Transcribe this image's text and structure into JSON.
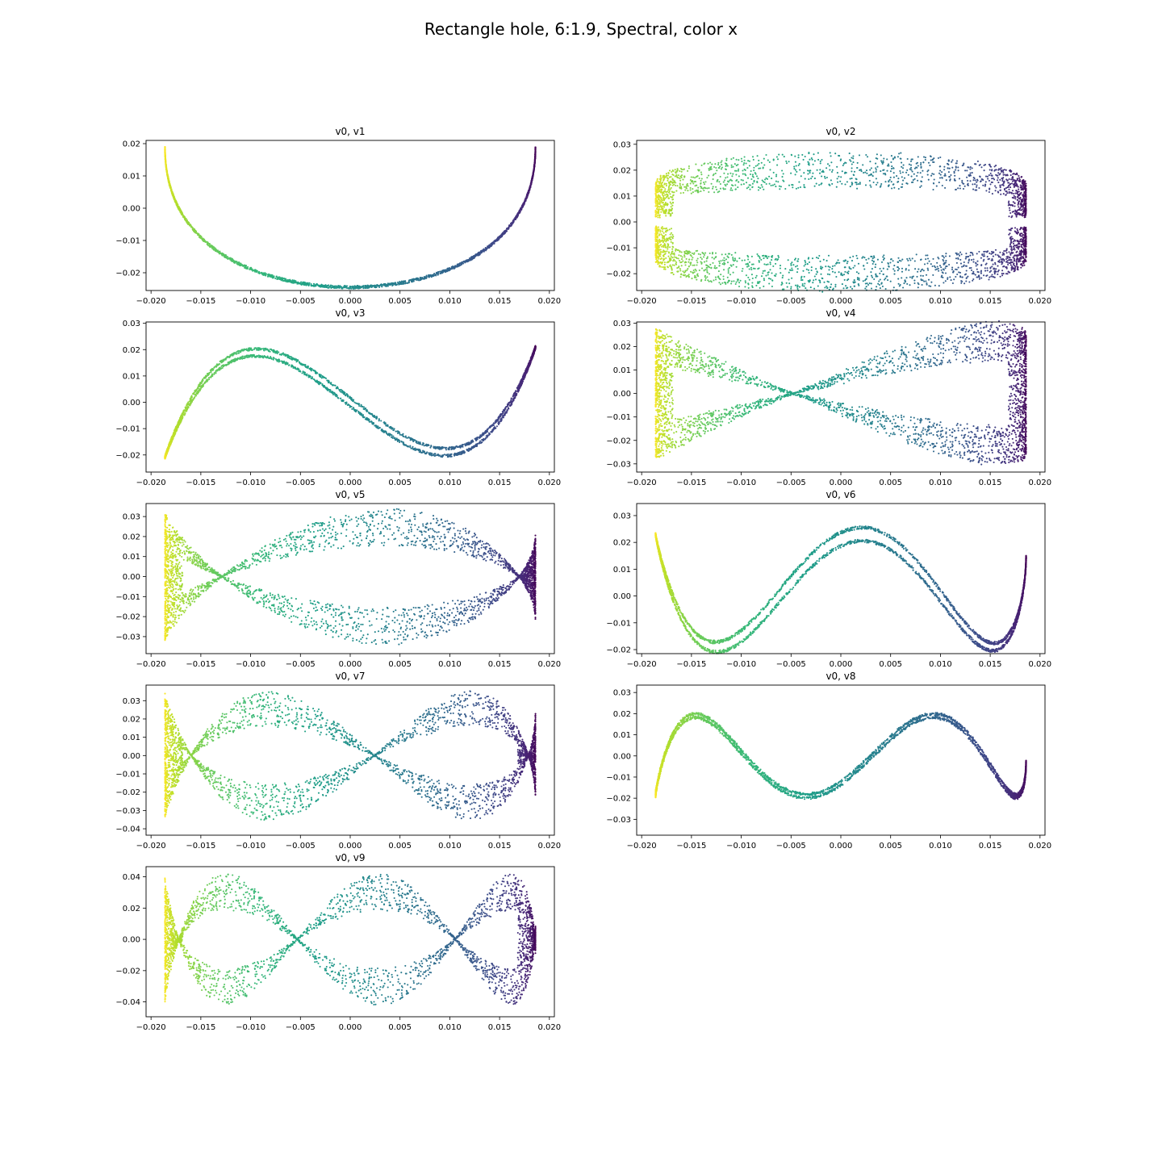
{
  "figure": {
    "title": "Rectangle hole, 6:1.9, Spectral, color x"
  },
  "chart_data": [
    {
      "type": "scatter",
      "title": "v0, v1",
      "xlim": [
        -0.0205,
        0.0205
      ],
      "ylim": [
        -0.0255,
        0.021
      ],
      "xticks": [
        -0.02,
        -0.015,
        -0.01,
        -0.005,
        0,
        0.005,
        0.01,
        0.015,
        0.02
      ],
      "xtick_labels": [
        "−0.020",
        "−0.015",
        "−0.010",
        "−0.005",
        "0.000",
        "0.005",
        "0.010",
        "0.015",
        "0.020"
      ],
      "yticks": [
        -0.02,
        -0.01,
        0,
        0.01,
        0.02
      ],
      "ytick_labels": [
        "−0.02",
        "−0.01",
        "0.00",
        "0.01",
        "0.02"
      ],
      "x_range": [
        -0.0186,
        0.0186
      ],
      "shape": "parabola",
      "pattern": "v1",
      "colormap": "viridis (reversed by x)"
    },
    {
      "type": "scatter",
      "title": "v0, v2",
      "xlim": [
        -0.0205,
        0.0205
      ],
      "ylim": [
        -0.0265,
        0.0315
      ],
      "xticks": [
        -0.02,
        -0.015,
        -0.01,
        -0.005,
        0,
        0.005,
        0.01,
        0.015,
        0.02
      ],
      "xtick_labels": [
        "−0.020",
        "−0.015",
        "−0.010",
        "−0.005",
        "0.000",
        "0.005",
        "0.010",
        "0.015",
        "0.020"
      ],
      "yticks": [
        -0.02,
        -0.01,
        0,
        0.01,
        0.02,
        0.03
      ],
      "ytick_labels": [
        "−0.02",
        "−0.01",
        "0.00",
        "0.01",
        "0.02",
        "0.03"
      ],
      "x_range": [
        -0.0186,
        0.0186
      ],
      "shape": "rectangle with hole",
      "pattern": "v2",
      "colormap": "viridis (reversed by x)"
    },
    {
      "type": "scatter",
      "title": "v0, v3",
      "xlim": [
        -0.0205,
        0.0205
      ],
      "ylim": [
        -0.0265,
        0.0305
      ],
      "xticks": [
        -0.02,
        -0.015,
        -0.01,
        -0.005,
        0,
        0.005,
        0.01,
        0.015,
        0.02
      ],
      "xtick_labels": [
        "−0.020",
        "−0.015",
        "−0.010",
        "−0.005",
        "0.000",
        "0.005",
        "0.010",
        "0.015",
        "0.020"
      ],
      "yticks": [
        -0.02,
        -0.01,
        0,
        0.01,
        0.02,
        0.03
      ],
      "ytick_labels": [
        "−0.02",
        "−0.01",
        "0.00",
        "0.01",
        "0.02",
        "0.03"
      ],
      "x_range": [
        -0.0186,
        0.0186
      ],
      "shape": "cubic",
      "pattern": "v3",
      "colormap": "viridis (reversed by x)"
    },
    {
      "type": "scatter",
      "title": "v0, v4",
      "xlim": [
        -0.0205,
        0.0205
      ],
      "ylim": [
        -0.0335,
        0.0305
      ],
      "xticks": [
        -0.02,
        -0.015,
        -0.01,
        -0.005,
        0,
        0.005,
        0.01,
        0.015,
        0.02
      ],
      "xtick_labels": [
        "−0.020",
        "−0.015",
        "−0.010",
        "−0.005",
        "0.000",
        "0.005",
        "0.010",
        "0.015",
        "0.020"
      ],
      "yticks": [
        -0.03,
        -0.02,
        -0.01,
        0,
        0.01,
        0.02,
        0.03
      ],
      "ytick_labels": [
        "−0.03",
        "−0.02",
        "−0.01",
        "0.00",
        "0.01",
        "0.02",
        "0.03"
      ],
      "x_range": [
        -0.0186,
        0.0186
      ],
      "shape": "bow-tie",
      "pattern": "v4",
      "colormap": "viridis (reversed by x)"
    },
    {
      "type": "scatter",
      "title": "v0, v5",
      "xlim": [
        -0.0205,
        0.0205
      ],
      "ylim": [
        -0.0385,
        0.0365
      ],
      "xticks": [
        -0.02,
        -0.015,
        -0.01,
        -0.005,
        0,
        0.005,
        0.01,
        0.015,
        0.02
      ],
      "xtick_labels": [
        "−0.020",
        "−0.015",
        "−0.010",
        "−0.005",
        "0.000",
        "0.005",
        "0.010",
        "0.015",
        "0.020"
      ],
      "yticks": [
        -0.03,
        -0.02,
        -0.01,
        0,
        0.01,
        0.02,
        0.03
      ],
      "ytick_labels": [
        "−0.03",
        "−0.02",
        "−0.01",
        "0.00",
        "0.01",
        "0.02",
        "0.03"
      ],
      "x_range": [
        -0.0186,
        0.0186
      ],
      "shape": "double crossing",
      "pattern": "v5",
      "colormap": "viridis (reversed by x)"
    },
    {
      "type": "scatter",
      "title": "v0, v6",
      "xlim": [
        -0.0205,
        0.0205
      ],
      "ylim": [
        -0.0215,
        0.0345
      ],
      "xticks": [
        -0.02,
        -0.015,
        -0.01,
        -0.005,
        0,
        0.005,
        0.01,
        0.015,
        0.02
      ],
      "xtick_labels": [
        "−0.020",
        "−0.015",
        "−0.010",
        "−0.005",
        "0.000",
        "0.005",
        "0.010",
        "0.015",
        "0.020"
      ],
      "yticks": [
        -0.02,
        -0.01,
        0,
        0.01,
        0.02,
        0.03
      ],
      "ytick_labels": [
        "−0.02",
        "−0.01",
        "0.00",
        "0.01",
        "0.02",
        "0.03"
      ],
      "x_range": [
        -0.0186,
        0.0186
      ],
      "shape": "W curve",
      "pattern": "v6",
      "colormap": "viridis (reversed by x)"
    },
    {
      "type": "scatter",
      "title": "v0, v7",
      "xlim": [
        -0.0205,
        0.0205
      ],
      "ylim": [
        -0.0435,
        0.0385
      ],
      "xticks": [
        -0.02,
        -0.015,
        -0.01,
        -0.005,
        0,
        0.005,
        0.01,
        0.015,
        0.02
      ],
      "xtick_labels": [
        "−0.020",
        "−0.015",
        "−0.010",
        "−0.005",
        "0.000",
        "0.005",
        "0.010",
        "0.015",
        "0.020"
      ],
      "yticks": [
        -0.04,
        -0.03,
        -0.02,
        -0.01,
        0,
        0.01,
        0.02,
        0.03
      ],
      "ytick_labels": [
        "−0.04",
        "−0.03",
        "−0.02",
        "−0.01",
        "0.00",
        "0.01",
        "0.02",
        "0.03"
      ],
      "x_range": [
        -0.0186,
        0.0186
      ],
      "shape": "triple crossing",
      "pattern": "v7",
      "colormap": "viridis (reversed by x)"
    },
    {
      "type": "scatter",
      "title": "v0, v8",
      "xlim": [
        -0.0205,
        0.0205
      ],
      "ylim": [
        -0.0375,
        0.0335
      ],
      "xticks": [
        -0.02,
        -0.015,
        -0.01,
        -0.005,
        0,
        0.005,
        0.01,
        0.015,
        0.02
      ],
      "xtick_labels": [
        "−0.020",
        "−0.015",
        "−0.010",
        "−0.005",
        "0.000",
        "0.005",
        "0.010",
        "0.015",
        "0.020"
      ],
      "yticks": [
        -0.03,
        -0.02,
        -0.01,
        0,
        0.01,
        0.02,
        0.03
      ],
      "ytick_labels": [
        "−0.03",
        "−0.02",
        "−0.01",
        "0.00",
        "0.01",
        "0.02",
        "0.03"
      ],
      "x_range": [
        -0.0186,
        0.0186
      ],
      "shape": "wave",
      "pattern": "v8",
      "colormap": "viridis (reversed by x)"
    },
    {
      "type": "scatter",
      "title": "v0, v9",
      "xlim": [
        -0.0205,
        0.0205
      ],
      "ylim": [
        -0.0495,
        0.0465
      ],
      "xticks": [
        -0.02,
        -0.015,
        -0.01,
        -0.005,
        0,
        0.005,
        0.01,
        0.015,
        0.02
      ],
      "xtick_labels": [
        "−0.020",
        "−0.015",
        "−0.010",
        "−0.005",
        "0.000",
        "0.005",
        "0.010",
        "0.015",
        "0.020"
      ],
      "yticks": [
        -0.04,
        -0.02,
        0,
        0.02,
        0.04
      ],
      "ytick_labels": [
        "−0.04",
        "−0.02",
        "0.00",
        "0.02",
        "0.04"
      ],
      "x_range": [
        -0.0186,
        0.0186
      ],
      "shape": "many crossings",
      "pattern": "v9",
      "colormap": "viridis (reversed by x)"
    }
  ]
}
